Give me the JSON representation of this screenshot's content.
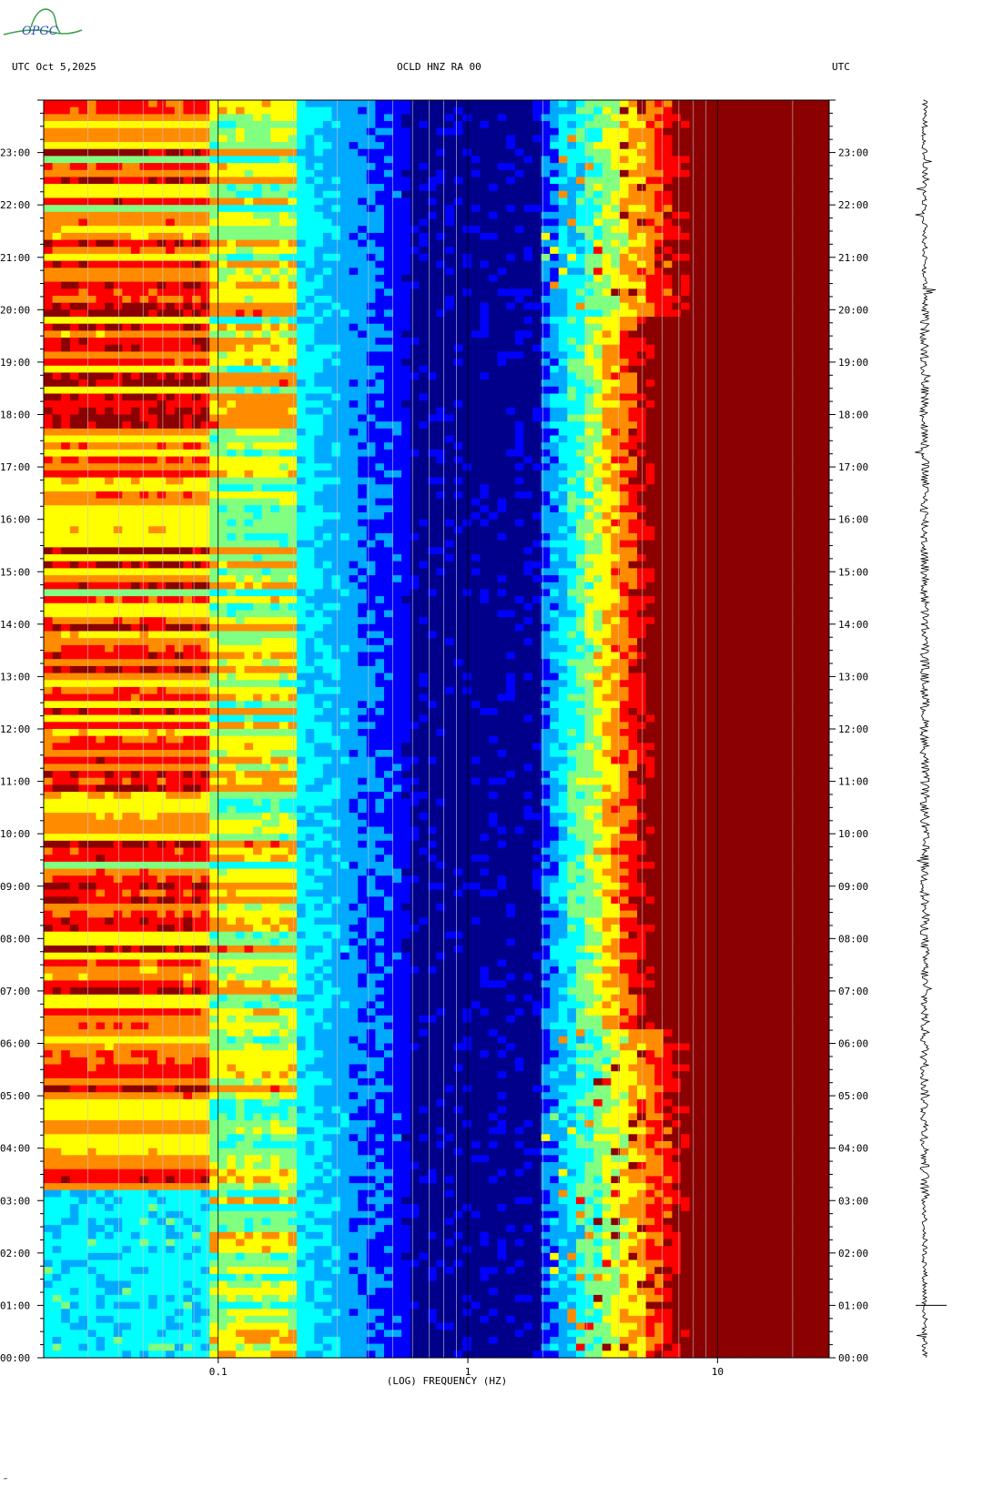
{
  "logo": {
    "text": "OPGC"
  },
  "header": {
    "left": "UTC  Oct 5,2025",
    "center": "OCLD HNZ RA 00",
    "right": "UTC"
  },
  "footer_mark": "‴",
  "chart_data": {
    "type": "heatmap",
    "title": "OCLD HNZ RA 00",
    "date": "Oct 5,2025",
    "xlabel": "(LOG) FREQUENCY (HZ)",
    "x_scale": "log",
    "xlim": [
      0.02,
      28
    ],
    "x_ticks": [
      {
        "value": 0.1,
        "label": "0.1"
      },
      {
        "value": 1,
        "label": "1"
      },
      {
        "value": 10,
        "label": "10"
      }
    ],
    "ylabel": "UTC",
    "ylim_hours": [
      0,
      24
    ],
    "y_ticks": [
      "00:00",
      "01:00",
      "02:00",
      "03:00",
      "04:00",
      "05:00",
      "06:00",
      "07:00",
      "08:00",
      "09:00",
      "10:00",
      "11:00",
      "12:00",
      "13:00",
      "14:00",
      "15:00",
      "16:00",
      "17:00",
      "18:00",
      "19:00",
      "20:00",
      "21:00",
      "22:00",
      "23:00"
    ],
    "colormap": [
      "#00008b",
      "#0000ff",
      "#00aaff",
      "#00ffff",
      "#80ff80",
      "#ffff00",
      "#ff8c00",
      "#ff0000",
      "#8b0000"
    ],
    "spectral_features": {
      "microseism_band_hz": [
        0.03,
        0.09
      ],
      "spectral_minimum_hz": [
        0.6,
        1.8
      ],
      "cultural_noise_band_hz": [
        5,
        28
      ],
      "saturated_above_hz": 10
    },
    "seismogram_trace": {
      "station": "OCLD",
      "channel": "HNZ"
    }
  }
}
